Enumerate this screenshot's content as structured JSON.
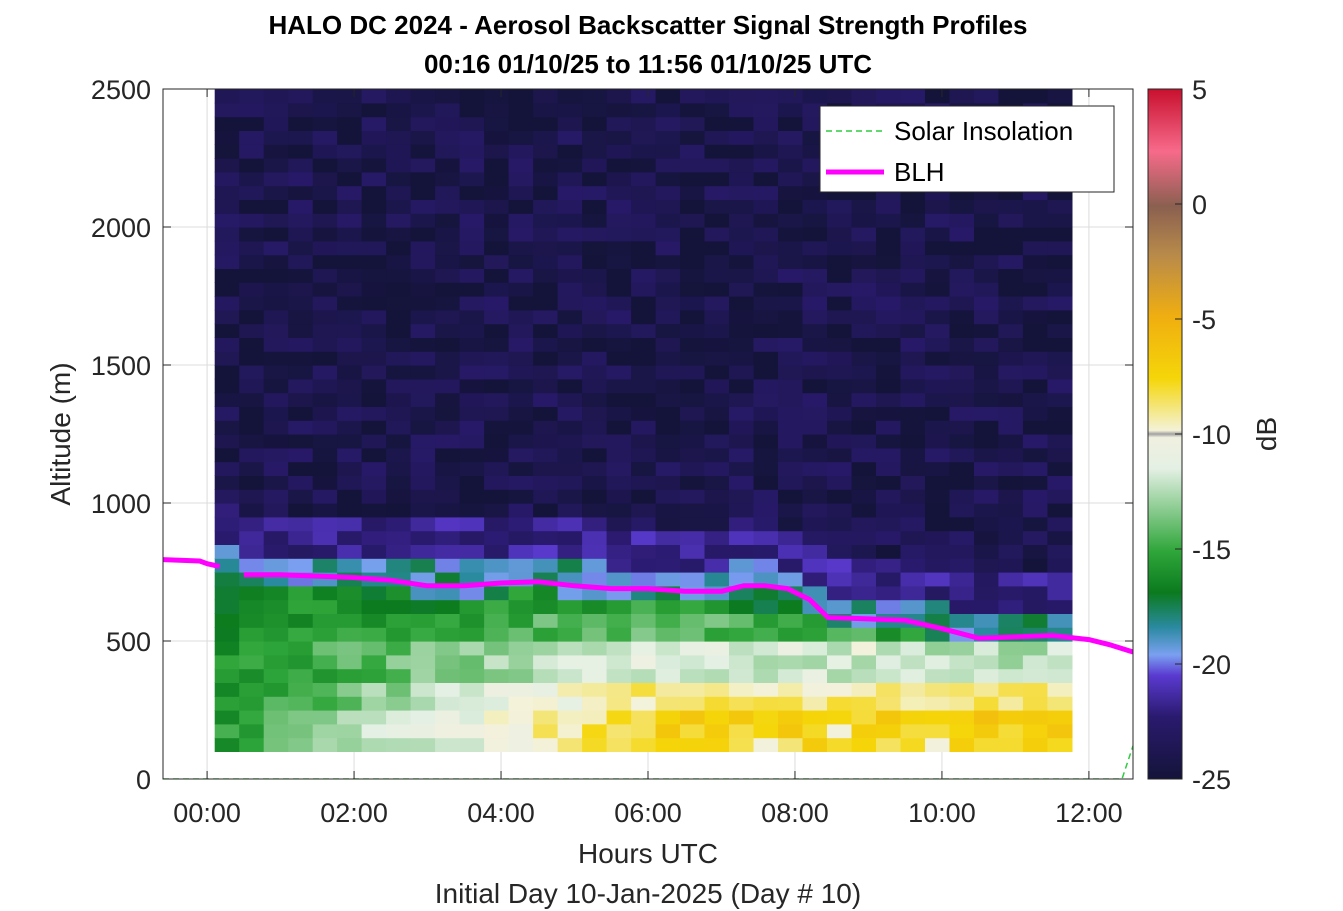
{
  "chart_data": {
    "type": "heatmap",
    "title": "HALO DC 2024 - Aerosol Backscatter Signal Strength Profiles",
    "subtitle": "00:16 01/10/25 to 11:56 01/10/25  UTC",
    "xlabel": "Hours UTC",
    "xlabel2": "Initial Day 10-Jan-2025 (Day # 10)",
    "ylabel": "Altitude (m)",
    "colorbar_label": "dB",
    "xlim": [
      -0.6,
      12.6
    ],
    "ylim": [
      0,
      2500
    ],
    "clim": [
      -25,
      5
    ],
    "x_ticks": [
      0,
      2,
      4,
      6,
      8,
      10,
      12
    ],
    "x_tick_labels": [
      "00:00",
      "02:00",
      "04:00",
      "06:00",
      "08:00",
      "10:00",
      "12:00"
    ],
    "y_ticks": [
      0,
      500,
      1000,
      1500,
      2000,
      2500
    ],
    "y_tick_labels": [
      "0",
      "500",
      "1000",
      "1500",
      "2000",
      "2500"
    ],
    "colorbar_ticks": [
      5,
      0,
      -5,
      -10,
      -15,
      -20,
      -25
    ],
    "colorbar_tick_labels": [
      "5",
      "0",
      "-5",
      "-10",
      "-15",
      "-20",
      "-25"
    ],
    "grid": true,
    "legend_position": "top-right",
    "heatmap": {
      "x_start": 0.27,
      "x_step": 0.3333,
      "x_count": 35,
      "y_start": 100,
      "y_step": 50,
      "y_count": 48,
      "bands": [
        {
          "from": 100,
          "to": 150,
          "mid": -8,
          "east": -7.5
        },
        {
          "from": 150,
          "to": 250,
          "mid": -7.5,
          "east": -7
        },
        {
          "from": 250,
          "to": 350,
          "mid": -9,
          "east": -9
        },
        {
          "from": 350,
          "to": 500,
          "mid": -11.5,
          "east": -12.5
        },
        {
          "from": 500,
          "to": 600,
          "mid": -14,
          "east": -16
        },
        {
          "from": 600,
          "to": 700,
          "mid": -15.5,
          "east": -18.5
        },
        {
          "from": 700,
          "to": 800,
          "mid": -18.5,
          "east": -21.5
        },
        {
          "from": 800,
          "to": 950,
          "mid": -22,
          "east": -23
        }
      ],
      "west_near_surface": -15,
      "upper_level": -24,
      "upper_variation": 1.4
    },
    "series": [
      {
        "name": "BLH",
        "color": "#ff00ff",
        "x": [
          -0.6,
          -0.1,
          0.0,
          0.17,
          0.5,
          1.0,
          1.5,
          2.0,
          2.5,
          3.0,
          3.5,
          4.0,
          4.5,
          5.0,
          5.5,
          6.0,
          6.5,
          7.0,
          7.3,
          7.6,
          7.9,
          8.2,
          8.45,
          9.0,
          9.5,
          10.0,
          10.5,
          11.0,
          11.5,
          12.0,
          12.3,
          12.6
        ],
        "y": [
          795,
          790,
          780,
          770,
          740,
          740,
          735,
          730,
          720,
          700,
          700,
          710,
          715,
          700,
          690,
          690,
          680,
          680,
          700,
          700,
          690,
          650,
          585,
          580,
          575,
          545,
          510,
          515,
          520,
          505,
          485,
          460
        ]
      },
      {
        "name": "Solar Insolation",
        "color": "#2ecc40",
        "x": [
          -0.6,
          12.45,
          12.6
        ],
        "y": [
          0,
          0,
          120
        ]
      }
    ]
  }
}
